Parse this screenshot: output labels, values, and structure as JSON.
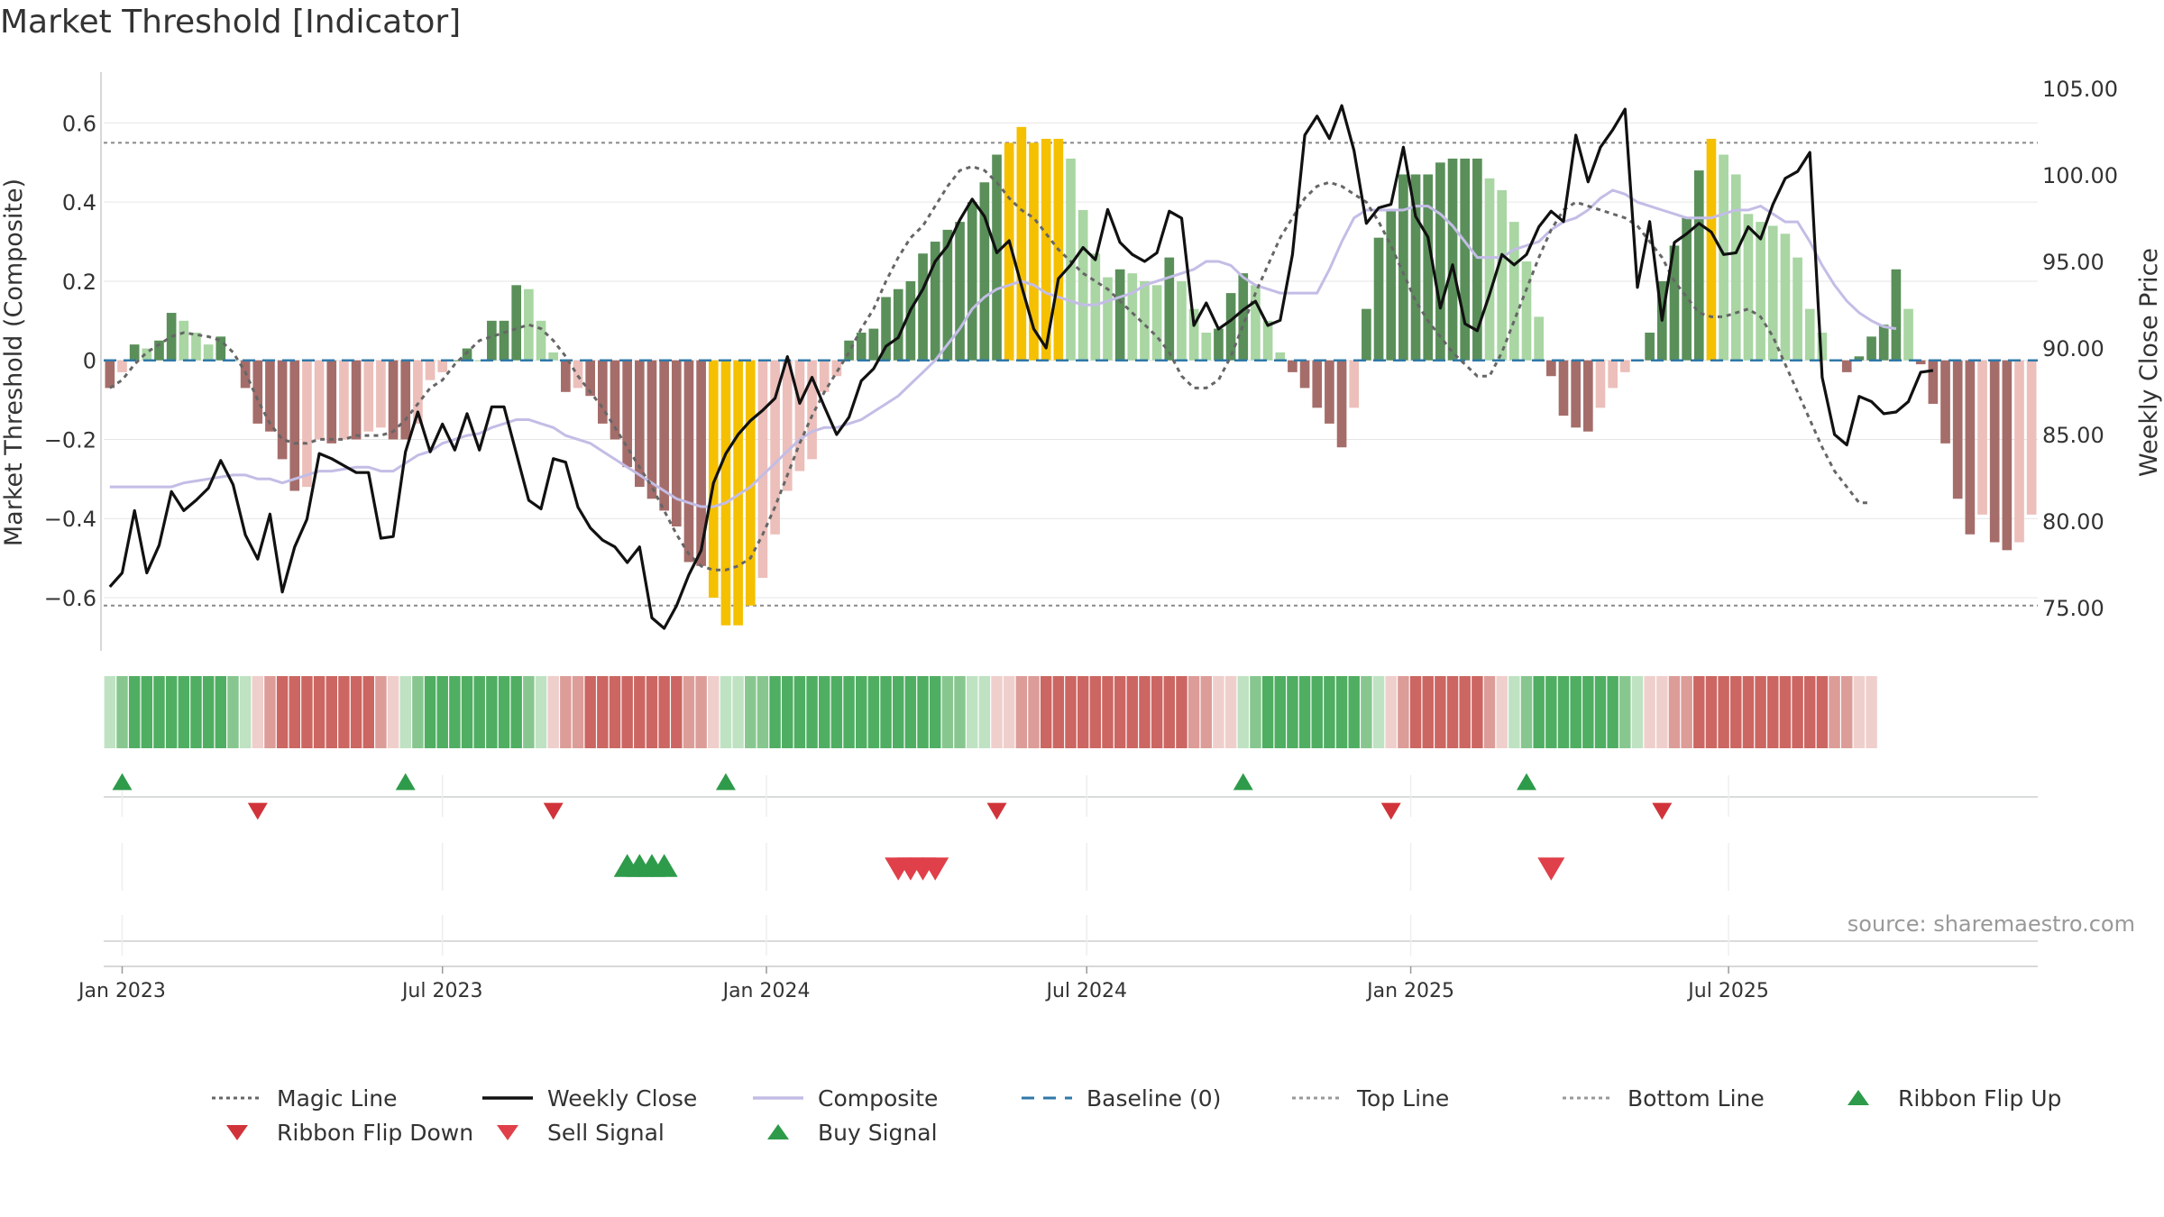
{
  "title": "Market Threshold [Indicator]",
  "source": "source: sharemaestro.com",
  "colors": {
    "green_dark": "#5a8f5a",
    "green_light": "#a9d6a3",
    "red_dark": "#a56d6a",
    "red_light": "#ecbfba",
    "extreme": "#f5c000",
    "close": "#111111",
    "composite": "#c3bde6",
    "magic": "#666666",
    "baseline": "#2f78a8",
    "threshold": "#888888",
    "flip_up": "#2e9b4a",
    "flip_down": "#d0343a",
    "sell": "#e0404a",
    "buy": "#2e9b4a"
  },
  "chart_data": {
    "type": "bar",
    "title": "Market Threshold [Indicator]",
    "ylabel": "Market Threshold (Composite)",
    "y2label": "Weekly Close Price",
    "ylim": [
      -0.73,
      0.74
    ],
    "y2lim": [
      72.6,
      106.2
    ],
    "y_ticks": [
      0.6,
      0.4,
      0.2,
      0,
      -0.2,
      -0.4,
      -0.6
    ],
    "y_tick_labels": [
      "0.6",
      "0.4",
      "0.2",
      "0",
      "−0.2",
      "−0.4",
      "−0.6"
    ],
    "y2_ticks": [
      105,
      100,
      95,
      90,
      85,
      80,
      75
    ],
    "y2_tick_labels": [
      "105.00",
      "100.00",
      "95.00",
      "90.00",
      "85.00",
      "80.00",
      "75.00"
    ],
    "top_line": 0.55,
    "bottom_line": -0.62,
    "x_start_label": "Jan 2023",
    "x_ticks": [
      {
        "label": "Jan 2023",
        "week": 1
      },
      {
        "label": "Jul 2023",
        "week": 27
      },
      {
        "label": "Jan 2024",
        "week": 53.3
      },
      {
        "label": "Jul 2024",
        "week": 79.3
      },
      {
        "label": "Jan 2025",
        "week": 105.6
      },
      {
        "label": "Jul 2025",
        "week": 131.4
      }
    ],
    "composite_bars": [
      -0.07,
      -0.03,
      0.04,
      0.03,
      0.05,
      0.12,
      0.1,
      0.07,
      0.04,
      0.06,
      0.0,
      -0.07,
      -0.16,
      -0.18,
      -0.25,
      -0.33,
      -0.32,
      -0.2,
      -0.21,
      -0.2,
      -0.2,
      -0.18,
      -0.17,
      -0.2,
      -0.2,
      -0.16,
      -0.05,
      -0.03,
      0.0,
      0.03,
      0.0,
      0.1,
      0.1,
      0.19,
      0.18,
      0.1,
      0.02,
      -0.08,
      -0.07,
      -0.09,
      -0.16,
      -0.2,
      -0.27,
      -0.32,
      -0.35,
      -0.38,
      -0.42,
      -0.51,
      -0.52,
      -0.6,
      -0.67,
      -0.67,
      -0.62,
      -0.55,
      -0.44,
      -0.33,
      -0.28,
      -0.25,
      -0.08,
      -0.04,
      0.05,
      0.07,
      0.08,
      0.16,
      0.18,
      0.2,
      0.27,
      0.3,
      0.33,
      0.35,
      0.4,
      0.45,
      0.52,
      0.55,
      0.59,
      0.55,
      0.56,
      0.56,
      0.51,
      0.38,
      0.27,
      0.21,
      0.23,
      0.22,
      0.2,
      0.19,
      0.26,
      0.2,
      0.13,
      0.07,
      0.08,
      0.17,
      0.22,
      0.19,
      0.1,
      0.02,
      -0.03,
      -0.07,
      -0.12,
      -0.16,
      -0.22,
      -0.12,
      0.13,
      0.31,
      0.38,
      0.47,
      0.47,
      0.47,
      0.5,
      0.51,
      0.51,
      0.51,
      0.46,
      0.43,
      0.35,
      0.25,
      0.11,
      -0.04,
      -0.14,
      -0.17,
      -0.18,
      -0.12,
      -0.07,
      -0.03,
      0.0,
      0.07,
      0.2,
      0.29,
      0.36,
      0.48,
      0.56,
      0.52,
      0.47,
      0.37,
      0.35,
      0.34,
      0.32,
      0.26,
      0.13,
      0.07,
      0.0,
      -0.03,
      0.01,
      0.06,
      0.09,
      0.23,
      0.13,
      -0.01,
      -0.11,
      -0.21,
      -0.35,
      -0.44,
      -0.39,
      -0.46,
      -0.48,
      -0.46,
      -0.39
    ],
    "weekly_close": [
      76.2,
      77.0,
      80.6,
      77.0,
      78.6,
      81.7,
      80.6,
      81.2,
      81.9,
      83.5,
      82.1,
      79.2,
      77.8,
      80.4,
      75.9,
      78.5,
      80.1,
      83.9,
      83.6,
      83.2,
      82.8,
      82.8,
      79.0,
      79.1,
      84.0,
      86.3,
      84.0,
      85.6,
      84.1,
      86.2,
      84.1,
      86.6,
      86.6,
      83.9,
      81.2,
      80.7,
      83.6,
      83.4,
      80.8,
      79.6,
      78.9,
      78.5,
      77.6,
      78.5,
      74.4,
      73.8,
      75.1,
      76.9,
      78.3,
      82.2,
      83.9,
      85.0,
      85.8,
      86.4,
      87.1,
      89.5,
      86.8,
      88.3,
      86.6,
      85.0,
      86.0,
      88.1,
      88.8,
      90.1,
      90.6,
      92.2,
      93.4,
      95.0,
      95.9,
      97.4,
      98.6,
      97.6,
      95.5,
      96.2,
      93.6,
      91.1,
      90.0,
      94.0,
      94.8,
      95.8,
      95.1,
      98.0,
      96.1,
      95.4,
      95.0,
      95.5,
      97.9,
      97.5,
      91.3,
      92.6,
      91.1,
      91.6,
      92.2,
      92.7,
      91.3,
      91.6,
      95.4,
      102.3,
      103.4,
      102.1,
      104.0,
      101.4,
      97.2,
      98.1,
      98.3,
      101.6,
      97.6,
      96.4,
      92.3,
      94.8,
      91.4,
      91.0,
      93.1,
      95.4,
      94.8,
      95.4,
      97.0,
      97.9,
      97.3,
      102.3,
      99.6,
      101.6,
      102.6,
      103.8,
      93.5,
      97.3,
      91.6,
      96.1,
      96.6,
      97.2,
      96.7,
      95.4,
      95.5,
      97.0,
      96.3,
      98.3,
      99.8,
      100.2,
      101.3,
      88.3,
      85.0,
      84.4,
      87.2,
      86.9,
      86.2,
      86.3,
      86.9,
      88.6,
      88.7
    ],
    "composite_line": [
      -0.32,
      -0.32,
      -0.32,
      -0.32,
      -0.32,
      -0.32,
      -0.31,
      -0.305,
      -0.3,
      -0.295,
      -0.29,
      -0.29,
      -0.3,
      -0.3,
      -0.31,
      -0.3,
      -0.29,
      -0.28,
      -0.28,
      -0.275,
      -0.27,
      -0.27,
      -0.28,
      -0.28,
      -0.26,
      -0.24,
      -0.23,
      -0.21,
      -0.2,
      -0.19,
      -0.185,
      -0.17,
      -0.16,
      -0.15,
      -0.15,
      -0.16,
      -0.17,
      -0.19,
      -0.2,
      -0.21,
      -0.23,
      -0.25,
      -0.27,
      -0.29,
      -0.31,
      -0.33,
      -0.35,
      -0.36,
      -0.37,
      -0.37,
      -0.36,
      -0.34,
      -0.32,
      -0.29,
      -0.26,
      -0.23,
      -0.2,
      -0.18,
      -0.17,
      -0.17,
      -0.16,
      -0.15,
      -0.13,
      -0.11,
      -0.09,
      -0.06,
      -0.03,
      0.0,
      0.04,
      0.08,
      0.13,
      0.16,
      0.18,
      0.19,
      0.2,
      0.19,
      0.17,
      0.16,
      0.15,
      0.14,
      0.14,
      0.15,
      0.16,
      0.17,
      0.19,
      0.2,
      0.21,
      0.22,
      0.23,
      0.25,
      0.25,
      0.24,
      0.21,
      0.19,
      0.18,
      0.17,
      0.17,
      0.17,
      0.17,
      0.23,
      0.3,
      0.36,
      0.38,
      0.38,
      0.38,
      0.38,
      0.39,
      0.39,
      0.37,
      0.34,
      0.3,
      0.26,
      0.26,
      0.26,
      0.28,
      0.29,
      0.3,
      0.33,
      0.35,
      0.36,
      0.38,
      0.41,
      0.43,
      0.42,
      0.4,
      0.39,
      0.38,
      0.37,
      0.36,
      0.36,
      0.36,
      0.37,
      0.38,
      0.38,
      0.39,
      0.37,
      0.35,
      0.35,
      0.3,
      0.24,
      0.19,
      0.15,
      0.12,
      0.1,
      0.085,
      0.08
    ],
    "magic_line": [
      -0.07,
      -0.05,
      -0.01,
      0.02,
      0.04,
      0.06,
      0.07,
      0.065,
      0.06,
      0.05,
      0.02,
      -0.03,
      -0.1,
      -0.16,
      -0.2,
      -0.21,
      -0.21,
      -0.2,
      -0.2,
      -0.2,
      -0.19,
      -0.19,
      -0.19,
      -0.18,
      -0.15,
      -0.11,
      -0.07,
      -0.05,
      -0.01,
      0.02,
      0.05,
      0.06,
      0.07,
      0.08,
      0.09,
      0.08,
      0.05,
      0.01,
      -0.04,
      -0.08,
      -0.12,
      -0.17,
      -0.22,
      -0.27,
      -0.32,
      -0.38,
      -0.44,
      -0.49,
      -0.52,
      -0.53,
      -0.53,
      -0.52,
      -0.5,
      -0.44,
      -0.37,
      -0.29,
      -0.21,
      -0.14,
      -0.08,
      -0.03,
      0.02,
      0.08,
      0.13,
      0.2,
      0.26,
      0.31,
      0.34,
      0.39,
      0.44,
      0.48,
      0.49,
      0.48,
      0.45,
      0.41,
      0.38,
      0.36,
      0.32,
      0.28,
      0.25,
      0.22,
      0.2,
      0.18,
      0.15,
      0.12,
      0.09,
      0.06,
      0.02,
      -0.04,
      -0.07,
      -0.07,
      -0.05,
      0.01,
      0.09,
      0.17,
      0.24,
      0.31,
      0.36,
      0.41,
      0.44,
      0.45,
      0.44,
      0.42,
      0.4,
      0.35,
      0.29,
      0.22,
      0.15,
      0.1,
      0.06,
      0.02,
      -0.01,
      -0.04,
      -0.04,
      0.02,
      0.1,
      0.18,
      0.26,
      0.33,
      0.38,
      0.4,
      0.39,
      0.38,
      0.37,
      0.36,
      0.34,
      0.3,
      0.26,
      0.2,
      0.16,
      0.12,
      0.11,
      0.11,
      0.12,
      0.13,
      0.11,
      0.06,
      -0.01,
      -0.08,
      -0.15,
      -0.22,
      -0.28,
      -0.32,
      -0.36,
      -0.36
    ],
    "ribbon": {
      "label": "Ribbon",
      "segments": [
        {
          "state": "up",
          "from": 0,
          "to": 11
        },
        {
          "state": "down",
          "from": 12,
          "to": 23
        },
        {
          "state": "up",
          "from": 24,
          "to": 35
        },
        {
          "state": "down",
          "from": 36,
          "to": 49
        },
        {
          "state": "up",
          "from": 50,
          "to": 71
        },
        {
          "state": "down",
          "from": 72,
          "to": 91
        },
        {
          "state": "up",
          "from": 92,
          "to": 103
        },
        {
          "state": "down",
          "from": 104,
          "to": 113
        },
        {
          "state": "up",
          "from": 114,
          "to": 124
        },
        {
          "state": "down",
          "from": 125,
          "to": 143
        }
      ]
    },
    "ribbon_flip_up": [
      1,
      24,
      50,
      92,
      115
    ],
    "ribbon_flip_down": [
      12,
      36,
      72,
      104,
      126
    ],
    "buy_signal": [
      42,
      43,
      44,
      45
    ],
    "sell_signal": [
      64,
      65,
      66,
      67
    ],
    "sell_signal_2025": [
      117
    ],
    "legend": [
      "Magic Line",
      "Weekly Close",
      "Composite",
      "Baseline (0)",
      "Top Line",
      "Bottom Line",
      "Ribbon Flip Up",
      "Ribbon Flip Down",
      "Sell Signal",
      "Buy Signal"
    ]
  }
}
